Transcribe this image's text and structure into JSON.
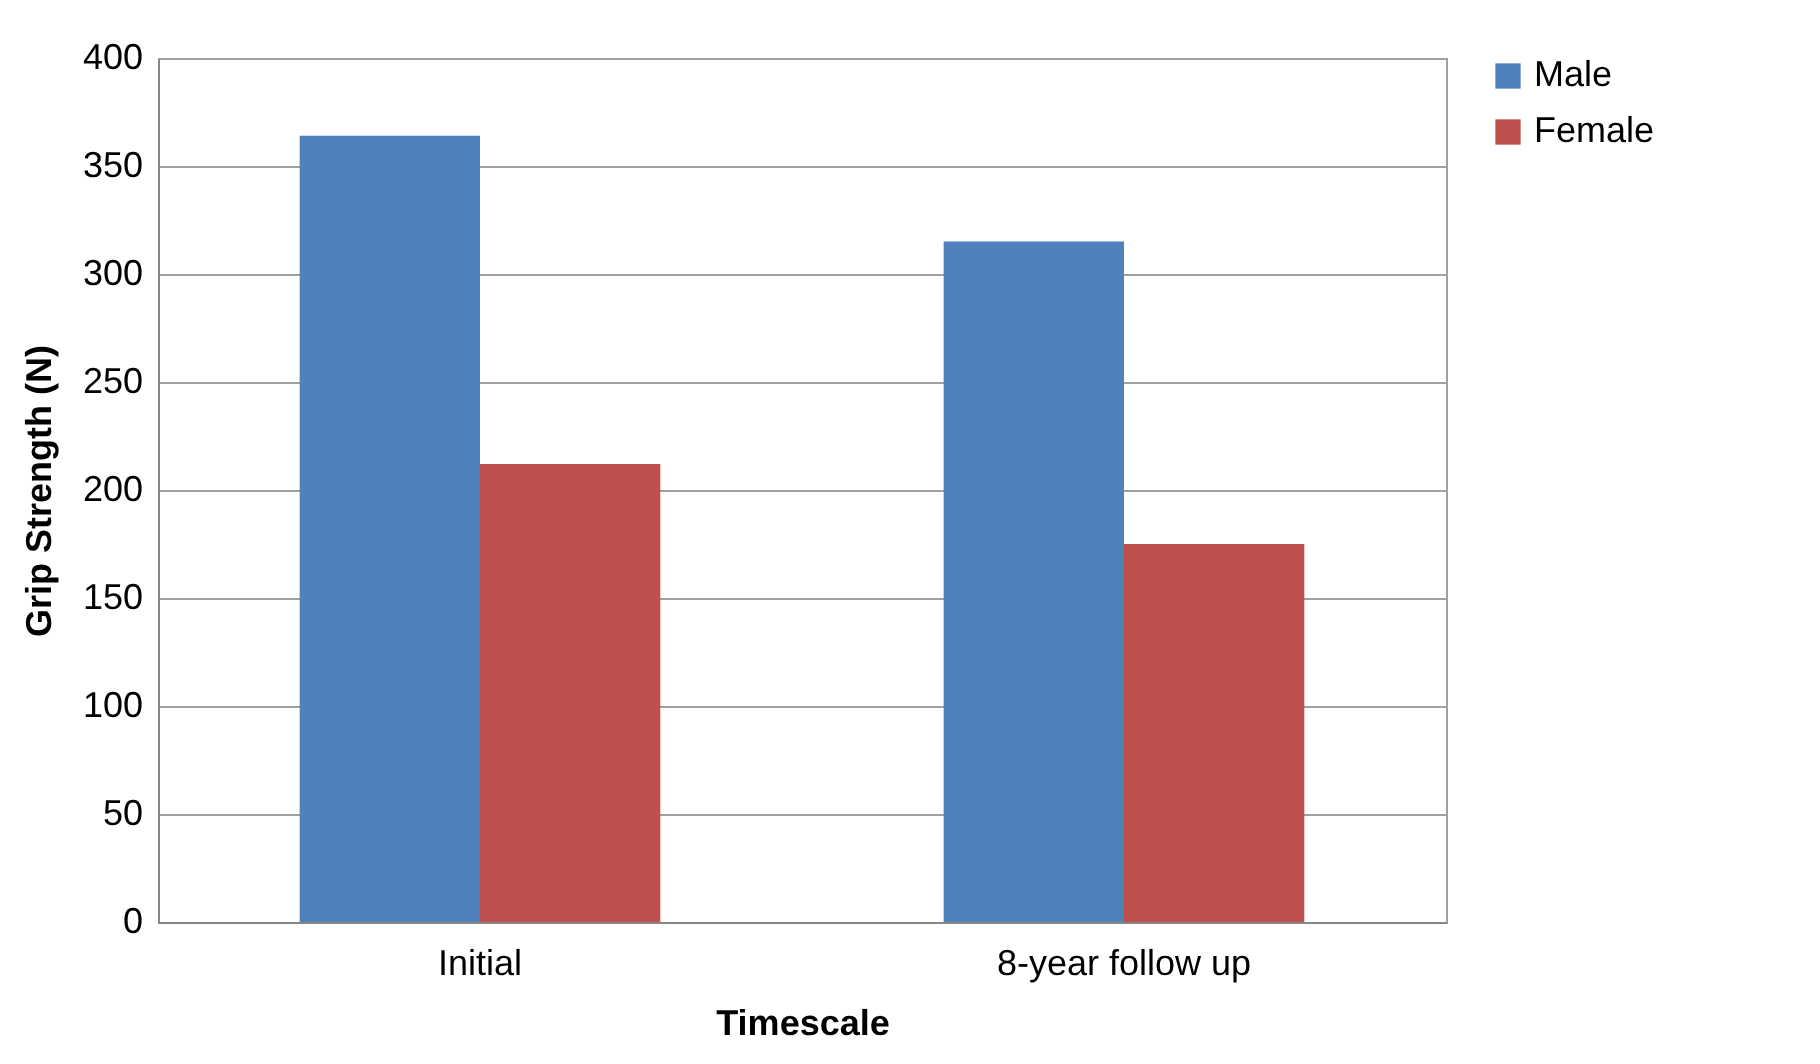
{
  "chart_data": {
    "type": "bar",
    "xlabel": "Timescale",
    "ylabel": "Grip Strength (N)",
    "categories": [
      "Initial",
      "8-year follow up"
    ],
    "series": [
      {
        "name": "Male",
        "color": "#4f81bd",
        "values": [
          364,
          315
        ]
      },
      {
        "name": "Female",
        "color": "#c0504d",
        "values": [
          212,
          175
        ]
      }
    ],
    "ylim": [
      0,
      400
    ],
    "yticks": [
      0,
      50,
      100,
      150,
      200,
      250,
      300,
      350,
      400
    ],
    "grid": "y",
    "legend": "right"
  }
}
